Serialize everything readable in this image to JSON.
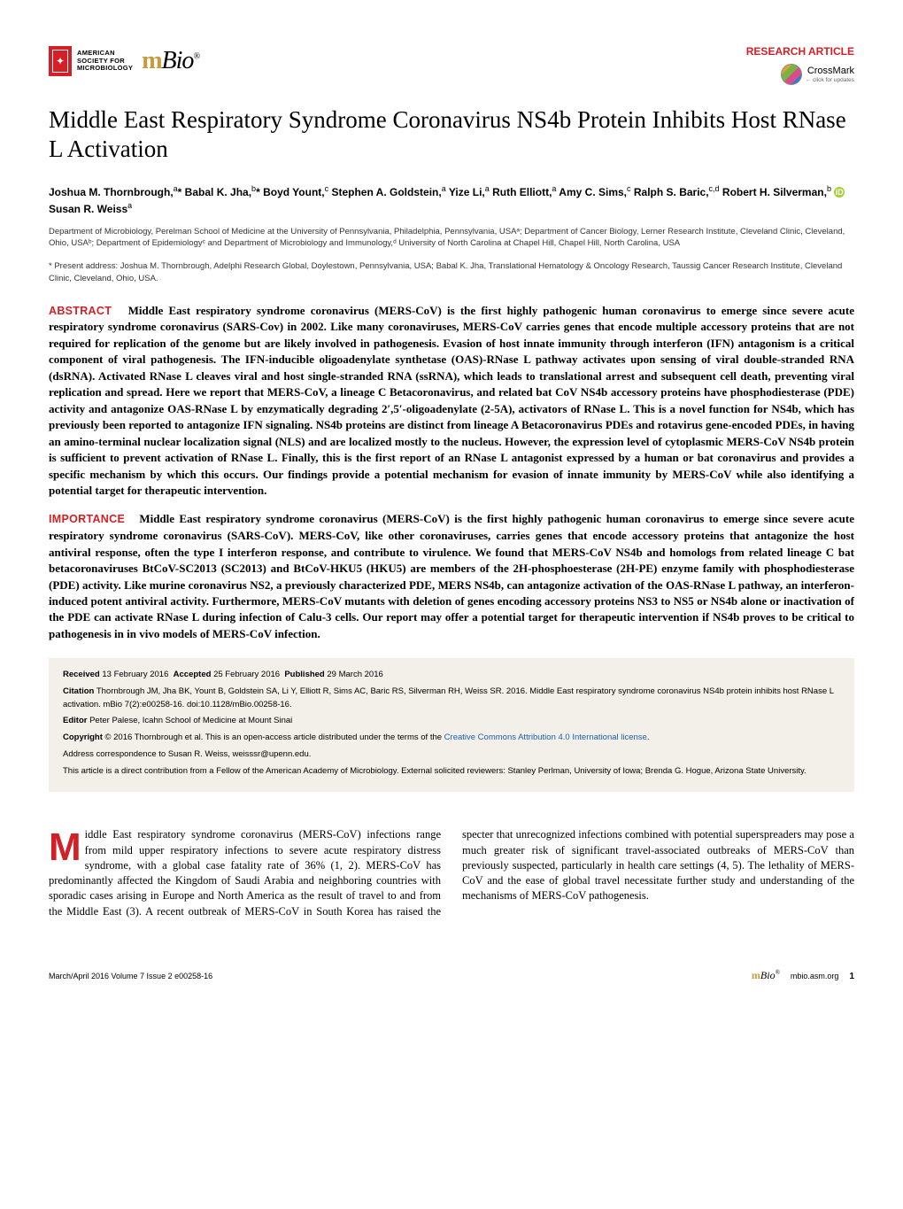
{
  "header": {
    "asm_text_l1": "AMERICAN",
    "asm_text_l2": "SOCIETY FOR",
    "asm_text_l3": "MICROBIOLOGY",
    "mbio_m": "m",
    "mbio_rest": "Bio",
    "article_type": "RESEARCH ARTICLE",
    "crossmark": "CrossMark",
    "crossmark_sub": "← click for updates"
  },
  "title": "Middle East Respiratory Syndrome Coronavirus NS4b Protein Inhibits Host RNase L Activation",
  "authors_html": "Joshua M. Thornbrough,<sup>a</sup>* Babal K. Jha,<sup>b</sup>* Boyd Yount,<sup>c</sup> Stephen A. Goldstein,<sup>a</sup> Yize Li,<sup>a</sup> Ruth Elliott,<sup>a</sup> Amy C. Sims,<sup>c</sup> Ralph S. Baric,<sup>c,d</sup> Robert H. Silverman,<sup>b</sup> <span class=\"orcid\">iD</span>Susan R. Weiss<sup>a</sup>",
  "affiliations": "Department of Microbiology, Perelman School of Medicine at the University of Pennsylvania, Philadelphia, Pennsylvania, USAᵃ; Department of Cancer Biology, Lerner Research Institute, Cleveland Clinic, Cleveland, Ohio, USAᵇ; Department of Epidemiologyᶜ and Department of Microbiology and Immunology,ᵈ University of North Carolina at Chapel Hill, Chapel Hill, North Carolina, USA",
  "present_address": "* Present address: Joshua M. Thornbrough, Adelphi Research Global, Doylestown, Pennsylvania, USA; Babal K. Jha, Translational Hematology & Oncology Research, Taussig Cancer Research Institute, Cleveland Clinic, Cleveland, Ohio, USA.",
  "abstract": {
    "label": "ABSTRACT",
    "text": "Middle East respiratory syndrome coronavirus (MERS-CoV) is the first highly pathogenic human coronavirus to emerge since severe acute respiratory syndrome coronavirus (SARS-Cov) in 2002. Like many coronaviruses, MERS-CoV carries genes that encode multiple accessory proteins that are not required for replication of the genome but are likely involved in pathogenesis. Evasion of host innate immunity through interferon (IFN) antagonism is a critical component of viral pathogenesis. The IFN-inducible oligoadenylate synthetase (OAS)-RNase L pathway activates upon sensing of viral double-stranded RNA (dsRNA). Activated RNase L cleaves viral and host single-stranded RNA (ssRNA), which leads to translational arrest and subsequent cell death, preventing viral replication and spread. Here we report that MERS-CoV, a lineage C Betacoronavirus, and related bat CoV NS4b accessory proteins have phosphodiesterase (PDE) activity and antagonize OAS-RNase L by enzymatically degrading 2′,5′-oligoadenylate (2-5A), activators of RNase L. This is a novel function for NS4b, which has previously been reported to antagonize IFN signaling. NS4b proteins are distinct from lineage A Betacoronavirus PDEs and rotavirus gene-encoded PDEs, in having an amino-terminal nuclear localization signal (NLS) and are localized mostly to the nucleus. However, the expression level of cytoplasmic MERS-CoV NS4b protein is sufficient to prevent activation of RNase L. Finally, this is the first report of an RNase L antagonist expressed by a human or bat coronavirus and provides a specific mechanism by which this occurs. Our findings provide a potential mechanism for evasion of innate immunity by MERS-CoV while also identifying a potential target for therapeutic intervention."
  },
  "importance": {
    "label": "IMPORTANCE",
    "text": "Middle East respiratory syndrome coronavirus (MERS-CoV) is the first highly pathogenic human coronavirus to emerge since severe acute respiratory syndrome coronavirus (SARS-CoV). MERS-CoV, like other coronaviruses, carries genes that encode accessory proteins that antagonize the host antiviral response, often the type I interferon response, and contribute to virulence. We found that MERS-CoV NS4b and homologs from related lineage C bat betacoronaviruses BtCoV-SC2013 (SC2013) and BtCoV-HKU5 (HKU5) are members of the 2H-phosphoesterase (2H-PE) enzyme family with phosphodiesterase (PDE) activity. Like murine coronavirus NS2, a previously characterized PDE, MERS NS4b, can antagonize activation of the OAS-RNase L pathway, an interferon-induced potent antiviral activity. Furthermore, MERS-CoV mutants with deletion of genes encoding accessory proteins NS3 to NS5 or NS4b alone or inactivation of the PDE can activate RNase L during infection of Calu-3 cells. Our report may offer a potential target for therapeutic intervention if NS4b proves to be critical to pathogenesis in in vivo models of MERS-CoV infection."
  },
  "meta": {
    "received_label": "Received",
    "received": "13 February 2016",
    "accepted_label": "Accepted",
    "accepted": "25 February 2016",
    "published_label": "Published",
    "published": "29 March 2016",
    "citation_label": "Citation",
    "citation": "Thornbrough JM, Jha BK, Yount B, Goldstein SA, Li Y, Elliott R, Sims AC, Baric RS, Silverman RH, Weiss SR. 2016. Middle East respiratory syndrome coronavirus NS4b protein inhibits host RNase L activation. mBio 7(2):e00258-16. doi:10.1128/mBio.00258-16.",
    "editor_label": "Editor",
    "editor": "Peter Palese, Icahn School of Medicine at Mount Sinai",
    "copyright_label": "Copyright",
    "copyright": "© 2016 Thornbrough et al. This is an open-access article distributed under the terms of the ",
    "license_link": "Creative Commons Attribution 4.0 International license",
    "license_period": ".",
    "correspondence": "Address correspondence to Susan R. Weiss, weisssr@upenn.edu.",
    "note": "This article is a direct contribution from a Fellow of the American Academy of Microbiology. External solicited reviewers: Stanley Perlman, University of Iowa; Brenda G. Hogue, Arizona State University."
  },
  "body": {
    "dropcap": "M",
    "col1": "iddle East respiratory syndrome coronavirus (MERS-CoV) infections range from mild upper respiratory infections to severe acute respiratory distress syndrome, with a global case fatality rate of 36% (1, 2). MERS-CoV has predominantly affected the Kingdom of Saudi Arabia and neighboring countries with sporadic cases arising in Europe and North America as the result of travel to and from the Middle East (3). A recent outbreak of MERS-CoV in South Korea has raised the specter that unrecognized infections combined with potential superspreaders may pose a much greater risk of significant travel-associated outbreaks of MERS-CoV than previously suspected, particularly in health care settings (4, 5). The lethality of MERS-CoV and the ease of global travel necessitate further study and understanding of the mechanisms of MERS-CoV pathogenesis."
  },
  "footer": {
    "left": "March/April 2016   Volume 7   Issue 2   e00258-16",
    "mbio_m": "m",
    "mbio_rest": "Bio",
    "url": "mbio.asm.org",
    "page": "1"
  },
  "colors": {
    "accent_red": "#d32027",
    "orcid_green": "#a6ce39",
    "link_blue": "#1a5fad",
    "meta_bg": "#f3efe9",
    "mbio_gold": "#c89a3a"
  }
}
